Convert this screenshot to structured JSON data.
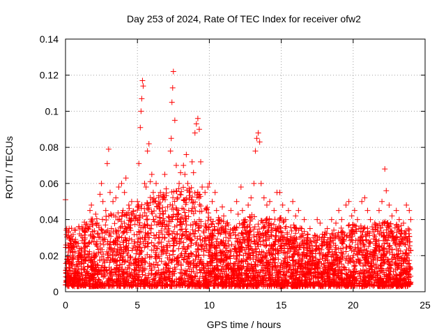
{
  "chart_data": {
    "type": "scatter",
    "title": "Day 253 of 2024, Rate Of TEC Index for receiver ofw2",
    "xlabel": "GPS time / hours",
    "ylabel": "ROTI / TECUs",
    "xlim": [
      0,
      25
    ],
    "ylim": [
      0,
      0.14
    ],
    "xticks": [
      0,
      5,
      10,
      15,
      20,
      25
    ],
    "yticks": [
      0,
      0.02,
      0.04,
      0.06,
      0.08,
      0.1,
      0.12,
      0.14
    ],
    "xtick_labels": [
      "0",
      "5",
      "10",
      "15",
      "20",
      "25"
    ],
    "ytick_labels": [
      "0",
      "0.02",
      "0.04",
      "0.06",
      "0.08",
      "0.1",
      "0.12",
      "0.14"
    ],
    "grid": true,
    "marker": "+",
    "marker_color": "#ff0000",
    "series": [
      {
        "points": [
          [
            0.0,
            0.051
          ],
          [
            0.05,
            0.012
          ],
          [
            0.1,
            0.018
          ],
          [
            0.2,
            0.022
          ],
          [
            0.25,
            0.035
          ],
          [
            0.3,
            0.03
          ],
          [
            0.4,
            0.008
          ],
          [
            0.5,
            0.025
          ],
          [
            0.6,
            0.028
          ],
          [
            0.8,
            0.015
          ],
          [
            1.0,
            0.02
          ],
          [
            1.2,
            0.03
          ],
          [
            1.4,
            0.027
          ],
          [
            1.5,
            0.035
          ],
          [
            1.7,
            0.045
          ],
          [
            1.8,
            0.048
          ],
          [
            1.9,
            0.037
          ],
          [
            2.0,
            0.03
          ],
          [
            2.1,
            0.043
          ],
          [
            2.2,
            0.038
          ],
          [
            2.4,
            0.054
          ],
          [
            2.5,
            0.06
          ],
          [
            2.6,
            0.05
          ],
          [
            2.8,
            0.045
          ],
          [
            2.9,
            0.071
          ],
          [
            3.0,
            0.079
          ],
          [
            3.1,
            0.055
          ],
          [
            3.3,
            0.05
          ],
          [
            3.5,
            0.052
          ],
          [
            3.7,
            0.058
          ],
          [
            3.9,
            0.06
          ],
          [
            4.0,
            0.045
          ],
          [
            4.1,
            0.055
          ],
          [
            4.2,
            0.063
          ],
          [
            4.4,
            0.048
          ],
          [
            4.6,
            0.05
          ],
          [
            4.8,
            0.042
          ],
          [
            5.0,
            0.05
          ],
          [
            5.1,
            0.071
          ],
          [
            5.2,
            0.091
          ],
          [
            5.25,
            0.1
          ],
          [
            5.3,
            0.107
          ],
          [
            5.35,
            0.117
          ],
          [
            5.4,
            0.114
          ],
          [
            5.5,
            0.06
          ],
          [
            5.6,
            0.058
          ],
          [
            5.7,
            0.078
          ],
          [
            5.8,
            0.082
          ],
          [
            5.9,
            0.061
          ],
          [
            6.0,
            0.065
          ],
          [
            6.1,
            0.055
          ],
          [
            6.2,
            0.05
          ],
          [
            6.3,
            0.06
          ],
          [
            6.5,
            0.048
          ],
          [
            6.6,
            0.055
          ],
          [
            6.8,
            0.052
          ],
          [
            6.9,
            0.065
          ],
          [
            7.0,
            0.057
          ],
          [
            7.1,
            0.047
          ],
          [
            7.3,
            0.078
          ],
          [
            7.35,
            0.085
          ],
          [
            7.4,
            0.105
          ],
          [
            7.45,
            0.113
          ],
          [
            7.5,
            0.122
          ],
          [
            7.6,
            0.095
          ],
          [
            7.7,
            0.07
          ],
          [
            7.8,
            0.052
          ],
          [
            7.9,
            0.06
          ],
          [
            8.0,
            0.066
          ],
          [
            8.2,
            0.07
          ],
          [
            8.3,
            0.065
          ],
          [
            8.4,
            0.076
          ],
          [
            8.5,
            0.06
          ],
          [
            8.6,
            0.055
          ],
          [
            8.8,
            0.072
          ],
          [
            8.9,
            0.066
          ],
          [
            9.0,
            0.088
          ],
          [
            9.1,
            0.093
          ],
          [
            9.2,
            0.096
          ],
          [
            9.3,
            0.09
          ],
          [
            9.4,
            0.072
          ],
          [
            9.5,
            0.058
          ],
          [
            9.7,
            0.055
          ],
          [
            9.9,
            0.058
          ],
          [
            10.0,
            0.06
          ],
          [
            10.2,
            0.05
          ],
          [
            10.4,
            0.055
          ],
          [
            10.5,
            0.045
          ],
          [
            10.7,
            0.04
          ],
          [
            10.9,
            0.047
          ],
          [
            11.0,
            0.042
          ],
          [
            11.2,
            0.038
          ],
          [
            11.5,
            0.045
          ],
          [
            11.7,
            0.035
          ],
          [
            11.9,
            0.05
          ],
          [
            12.0,
            0.043
          ],
          [
            12.2,
            0.058
          ],
          [
            12.3,
            0.045
          ],
          [
            12.5,
            0.04
          ],
          [
            12.7,
            0.048
          ],
          [
            12.9,
            0.052
          ],
          [
            13.1,
            0.06
          ],
          [
            13.2,
            0.078
          ],
          [
            13.3,
            0.085
          ],
          [
            13.4,
            0.088
          ],
          [
            13.5,
            0.083
          ],
          [
            13.6,
            0.06
          ],
          [
            13.8,
            0.052
          ],
          [
            14.0,
            0.048
          ],
          [
            14.2,
            0.05
          ],
          [
            14.5,
            0.045
          ],
          [
            14.7,
            0.055
          ],
          [
            14.9,
            0.055
          ],
          [
            15.1,
            0.048
          ],
          [
            15.3,
            0.04
          ],
          [
            15.5,
            0.045
          ],
          [
            15.8,
            0.05
          ],
          [
            16.0,
            0.042
          ],
          [
            16.2,
            0.045
          ],
          [
            16.4,
            0.035
          ],
          [
            16.6,
            0.04
          ],
          [
            16.8,
            0.03
          ],
          [
            17.0,
            0.035
          ],
          [
            17.3,
            0.028
          ],
          [
            17.5,
            0.04
          ],
          [
            17.7,
            0.038
          ],
          [
            18.0,
            0.03
          ],
          [
            18.2,
            0.035
          ],
          [
            18.5,
            0.04
          ],
          [
            18.8,
            0.038
          ],
          [
            19.0,
            0.045
          ],
          [
            19.2,
            0.04
          ],
          [
            19.5,
            0.048
          ],
          [
            19.7,
            0.05
          ],
          [
            19.9,
            0.042
          ],
          [
            20.1,
            0.045
          ],
          [
            20.3,
            0.04
          ],
          [
            20.6,
            0.05
          ],
          [
            20.8,
            0.052
          ],
          [
            21.0,
            0.045
          ],
          [
            21.2,
            0.04
          ],
          [
            21.5,
            0.038
          ],
          [
            21.8,
            0.045
          ],
          [
            22.0,
            0.05
          ],
          [
            22.2,
            0.068
          ],
          [
            22.3,
            0.056
          ],
          [
            22.5,
            0.048
          ],
          [
            22.7,
            0.042
          ],
          [
            23.0,
            0.045
          ],
          [
            23.2,
            0.04
          ],
          [
            23.5,
            0.038
          ],
          [
            23.7,
            0.048
          ],
          [
            23.9,
            0.045
          ],
          [
            24.0,
            0.04
          ]
        ]
      }
    ]
  }
}
